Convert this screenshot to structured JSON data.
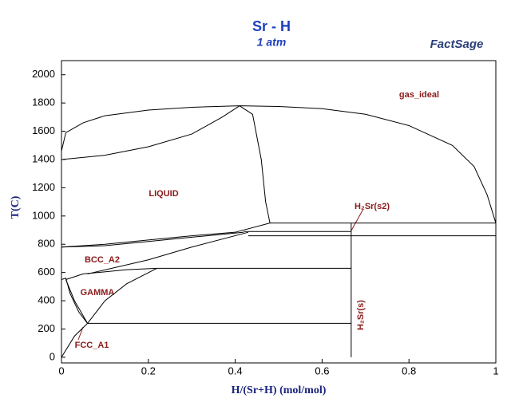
{
  "chart_data": {
    "type": "line",
    "title": "Sr - H",
    "subtitle": "1 atm",
    "logo": "FactSage",
    "x_label": "H/(Sr+H) (mol/mol)",
    "y_label": "T(C)",
    "xlim": [
      0,
      1
    ],
    "ylim": [
      -40,
      2100
    ],
    "xticks": [
      0,
      0.2,
      0.4,
      0.6,
      0.8,
      1
    ],
    "yticks": [
      0,
      200,
      400,
      600,
      800,
      1000,
      1200,
      1400,
      1600,
      1800,
      2000
    ],
    "grid": false,
    "series": [
      {
        "color": "#000000",
        "x": [
          0,
          0.01,
          0.05,
          0.1,
          0.2,
          0.3,
          0.41,
          0.5,
          0.6,
          0.7,
          0.8,
          0.9,
          0.95,
          0.98,
          1
        ],
        "values": [
          1460,
          1590,
          1660,
          1710,
          1750,
          1770,
          1780,
          1775,
          1760,
          1720,
          1640,
          1500,
          1350,
          1150,
          950
        ]
      },
      {
        "color": "#000000",
        "x": [
          0,
          0.1,
          0.2,
          0.3,
          0.37,
          0.41
        ],
        "values": [
          1400,
          1430,
          1490,
          1580,
          1700,
          1780
        ]
      },
      {
        "color": "#000000",
        "x": [
          0.41,
          0.44,
          0.46,
          0.47,
          0.48
        ],
        "values": [
          1780,
          1720,
          1400,
          1100,
          950
        ]
      },
      {
        "color": "#000000",
        "x": [
          0.48,
          1
        ],
        "values": [
          950,
          950
        ]
      },
      {
        "color": "#000000",
        "x": [
          0.42,
          0.667
        ],
        "values": [
          890,
          890
        ]
      },
      {
        "color": "#000000",
        "x": [
          0.43,
          1
        ],
        "values": [
          860,
          860
        ]
      },
      {
        "color": "#000000",
        "x": [
          0,
          0.1,
          0.2,
          0.3,
          0.4,
          0.48
        ],
        "values": [
          780,
          800,
          830,
          860,
          885,
          950
        ]
      },
      {
        "color": "#000000",
        "x": [
          0,
          0.1,
          0.2,
          0.3,
          0.42
        ],
        "values": [
          780,
          790,
          820,
          850,
          885
        ]
      },
      {
        "color": "#000000",
        "x": [
          0.01,
          0.05,
          0.15,
          0.22
        ],
        "values": [
          550,
          590,
          620,
          630
        ]
      },
      {
        "color": "#000000",
        "x": [
          0.22,
          0.667
        ],
        "values": [
          630,
          630
        ]
      },
      {
        "color": "#000000",
        "x": [
          0.06,
          0.2,
          0.3,
          0.43
        ],
        "values": [
          590,
          690,
          780,
          885
        ]
      },
      {
        "color": "#000000",
        "x": [
          0,
          0.01,
          0.02,
          0.04,
          0.06
        ],
        "values": [
          550,
          560,
          450,
          320,
          240
        ]
      },
      {
        "color": "#000000",
        "x": [
          0.22,
          0.15,
          0.1,
          0.06
        ],
        "values": [
          630,
          520,
          400,
          240
        ]
      },
      {
        "color": "#000000",
        "x": [
          0.01,
          0.03,
          0.06
        ],
        "values": [
          550,
          400,
          240
        ]
      },
      {
        "color": "#000000",
        "x": [
          0.06,
          0.667
        ],
        "values": [
          240,
          240
        ]
      },
      {
        "color": "#000000",
        "x": [
          0,
          0.03,
          0.06
        ],
        "values": [
          0,
          150,
          240
        ]
      },
      {
        "color": "#000000",
        "x": [
          0.667,
          0.667
        ],
        "values": [
          0,
          950
        ]
      }
    ],
    "annotations": [
      "gas_ideal",
      "LIQUID",
      "H₂Sr(s2)",
      "BCC_A2",
      "GAMMA",
      "H₂Sr(s)",
      "FCC_A1"
    ]
  }
}
